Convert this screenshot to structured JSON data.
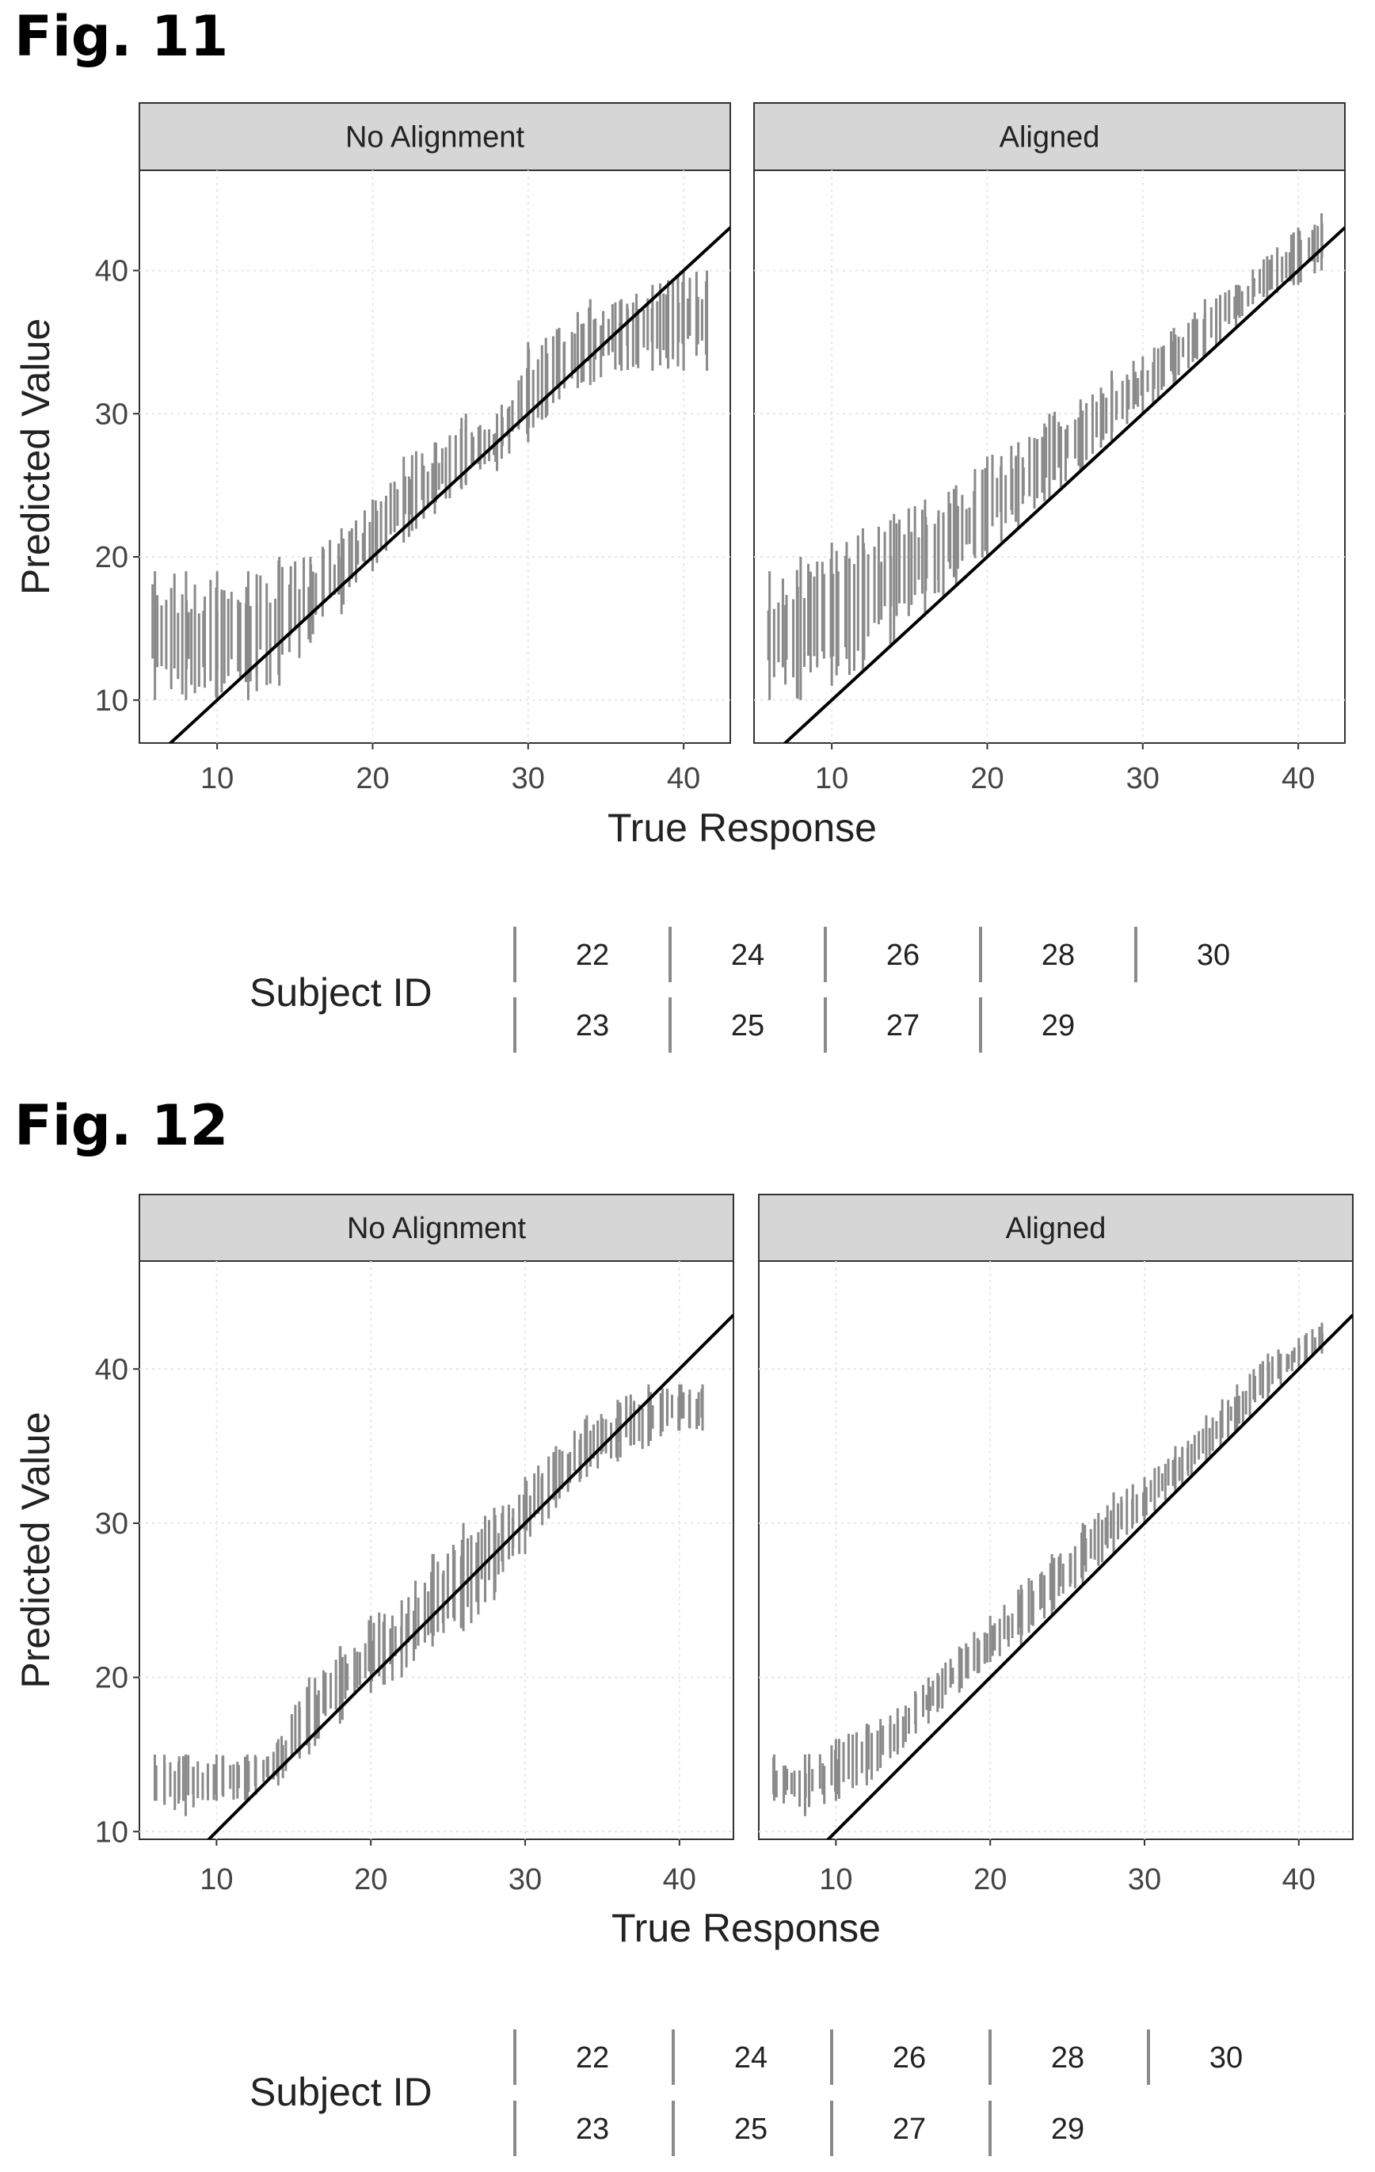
{
  "figures": [
    {
      "label": "Fig. 11",
      "legend": {
        "title": "Subject ID",
        "rows": [
          [
            "22",
            "24",
            "26",
            "28",
            "30"
          ],
          [
            "23",
            "25",
            "27",
            "29"
          ]
        ]
      }
    },
    {
      "label": "Fig. 12",
      "legend": {
        "title": "Subject ID",
        "rows": [
          [
            "22",
            "24",
            "26",
            "28",
            "30"
          ],
          [
            "23",
            "25",
            "27",
            "29"
          ]
        ]
      }
    }
  ],
  "chart_data": [
    {
      "type": "line",
      "figure": "Fig. 11",
      "xlabel": "True Response",
      "ylabel": "Predicted Value",
      "xlim": [
        5,
        43
      ],
      "ylim": [
        7,
        47
      ],
      "xticks": [
        10,
        20,
        30,
        40
      ],
      "yticks": [
        10,
        20,
        30,
        40
      ],
      "panels": [
        {
          "strip": "No Alignment",
          "reference_line": [
            [
              5,
              5
            ],
            [
              43,
              43
            ]
          ],
          "series": [
            {
              "name": "Subject ID 22-30",
              "x": [
                6,
                8,
                10,
                12,
                14,
                16,
                18,
                20,
                22,
                24,
                26,
                28,
                30,
                32,
                34,
                36,
                38,
                40,
                41.5
              ],
              "ymin": [
                10,
                10,
                10,
                10,
                11,
                14,
                16,
                19,
                21,
                23,
                25,
                26,
                28,
                31,
                32,
                33,
                33,
                33,
                33
              ],
              "ymax": [
                19,
                19,
                19,
                19,
                20,
                20,
                22,
                24,
                27,
                28,
                30,
                30,
                35,
                36,
                38,
                38,
                39,
                40,
                40
              ]
            }
          ]
        },
        {
          "strip": "Aligned",
          "reference_line": [
            [
              5,
              5
            ],
            [
              43,
              43
            ]
          ],
          "series": [
            {
              "name": "Subject ID 22-30",
              "x": [
                6,
                8,
                10,
                12,
                14,
                16,
                18,
                20,
                22,
                24,
                26,
                28,
                30,
                32,
                34,
                36,
                38,
                40,
                41.5
              ],
              "ymin": [
                10,
                10,
                11,
                12,
                14,
                16,
                18,
                20,
                22,
                24,
                26,
                28,
                30,
                32,
                34,
                36,
                38,
                39,
                40
              ],
              "ymax": [
                19,
                20,
                21,
                22,
                23,
                24,
                25,
                27,
                28,
                30,
                31,
                33,
                34,
                36,
                38,
                39,
                41,
                43,
                44
              ]
            }
          ]
        }
      ]
    },
    {
      "type": "line",
      "figure": "Fig. 12",
      "xlabel": "True Response",
      "ylabel": "Predicted Value",
      "xlim": [
        5,
        43.5
      ],
      "ylim": [
        9.5,
        47
      ],
      "xticks": [
        10,
        20,
        30,
        40
      ],
      "yticks": [
        10,
        20,
        30,
        40
      ],
      "panels": [
        {
          "strip": "No Alignment",
          "reference_line": [
            [
              5,
              5
            ],
            [
              43.5,
              43.5
            ]
          ],
          "series": [
            {
              "name": "Subject ID 22-30",
              "x": [
                6,
                8,
                10,
                12,
                14,
                16,
                18,
                20,
                22,
                24,
                26,
                28,
                30,
                32,
                34,
                36,
                38,
                40,
                41.5
              ],
              "ymin": [
                12,
                11,
                12,
                12,
                13,
                15,
                17,
                19,
                20,
                22,
                23,
                25,
                28,
                31,
                33,
                34,
                35,
                36,
                36
              ],
              "ymax": [
                15,
                15,
                15,
                15,
                16,
                20,
                22,
                24,
                25,
                28,
                30,
                31,
                33,
                35,
                37,
                38,
                39,
                39,
                39
              ]
            }
          ]
        },
        {
          "strip": "Aligned",
          "reference_line": [
            [
              5,
              5
            ],
            [
              43.5,
              43.5
            ]
          ],
          "series": [
            {
              "name": "Subject ID 22-30",
              "x": [
                6,
                8,
                10,
                12,
                14,
                16,
                18,
                20,
                22,
                24,
                26,
                28,
                30,
                32,
                34,
                36,
                38,
                40,
                41.5
              ],
              "ymin": [
                12,
                11,
                12,
                13,
                15,
                17,
                19,
                21,
                22,
                24,
                26,
                28,
                30,
                32,
                34,
                36,
                38,
                40,
                41
              ],
              "ymax": [
                15,
                15,
                16,
                17,
                18,
                20,
                22,
                24,
                26,
                28,
                30,
                32,
                33,
                35,
                37,
                39,
                41,
                42,
                43
              ]
            }
          ]
        }
      ]
    }
  ]
}
